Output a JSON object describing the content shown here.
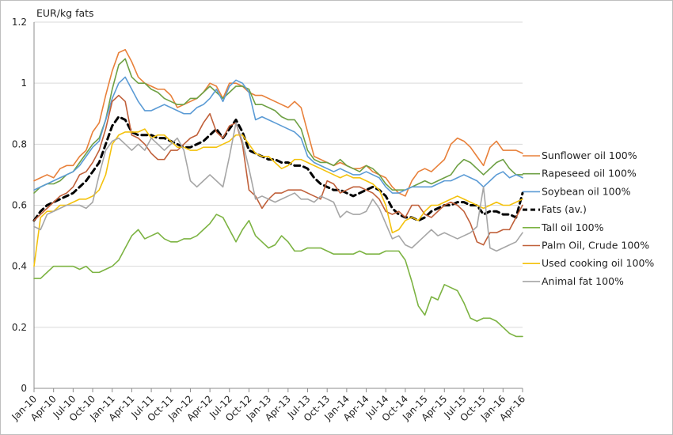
{
  "chart_data": {
    "type": "line",
    "ylabel": "EUR/kg fats",
    "ylim": [
      0,
      1.2
    ],
    "yticks": [
      "0",
      "0.2",
      "0.4",
      "0.6",
      "0.8",
      "1",
      "1.2"
    ],
    "x": [
      "Jan-10",
      "Feb-10",
      "Mar-10",
      "Apr-10",
      "May-10",
      "Jun-10",
      "Jul-10",
      "Aug-10",
      "Sep-10",
      "Oct-10",
      "Nov-10",
      "Dec-10",
      "Jan-11",
      "Feb-11",
      "Mar-11",
      "Apr-11",
      "May-11",
      "Jun-11",
      "Jul-11",
      "Aug-11",
      "Sep-11",
      "Oct-11",
      "Nov-11",
      "Dec-11",
      "Jan-12",
      "Feb-12",
      "Mar-12",
      "Apr-12",
      "May-12",
      "Jun-12",
      "Jul-12",
      "Aug-12",
      "Sep-12",
      "Oct-12",
      "Nov-12",
      "Dec-12",
      "Jan-13",
      "Feb-13",
      "Mar-13",
      "Apr-13",
      "May-13",
      "Jun-13",
      "Jul-13",
      "Aug-13",
      "Sep-13",
      "Oct-13",
      "Nov-13",
      "Dec-13",
      "Jan-14",
      "Feb-14",
      "Mar-14",
      "Apr-14",
      "May-14",
      "Jun-14",
      "Jul-14",
      "Aug-14",
      "Sep-14",
      "Oct-14",
      "Nov-14",
      "Dec-14",
      "Jan-15",
      "Feb-15",
      "Mar-15",
      "Apr-15",
      "May-15",
      "Jun-15",
      "Jul-15",
      "Aug-15",
      "Sep-15",
      "Oct-15",
      "Nov-15",
      "Dec-15",
      "Jan-16",
      "Feb-16",
      "Mar-16",
      "Apr-16"
    ],
    "xtick_labels": [
      "Jan-10",
      "Apr-10",
      "Jul-10",
      "Oct-10",
      "Jan-11",
      "Apr-11",
      "Jul-11",
      "Oct-11",
      "Jan-12",
      "Apr-12",
      "Jul-12",
      "Oct-12",
      "Jan-13",
      "Apr-13",
      "Jul-13",
      "Oct-13",
      "Jan-14",
      "Apr-14",
      "Jul-14",
      "Oct-14",
      "Jan-15",
      "Apr-15",
      "Jul-15",
      "Oct-15",
      "Jan-16",
      "Apr-16"
    ],
    "legend_position": "right",
    "grid": "horizontal",
    "series": [
      {
        "name": "Sunflower oil 100%",
        "color": "#E8803A",
        "dashed": false,
        "values": [
          0.68,
          0.69,
          0.7,
          0.69,
          0.72,
          0.73,
          0.73,
          0.76,
          0.78,
          0.84,
          0.87,
          0.96,
          1.04,
          1.1,
          1.11,
          1.07,
          1.02,
          1.0,
          0.99,
          0.98,
          0.98,
          0.96,
          0.92,
          0.93,
          0.94,
          0.95,
          0.97,
          1.0,
          0.99,
          0.95,
          1.0,
          1.0,
          0.99,
          0.97,
          0.96,
          0.96,
          0.95,
          0.94,
          0.93,
          0.92,
          0.94,
          0.92,
          0.84,
          0.76,
          0.75,
          0.74,
          0.73,
          0.74,
          0.73,
          0.72,
          0.72,
          0.73,
          0.71,
          0.7,
          0.69,
          0.66,
          0.64,
          0.63,
          0.68,
          0.71,
          0.72,
          0.71,
          0.73,
          0.75,
          0.8,
          0.82,
          0.81,
          0.79,
          0.76,
          0.73,
          0.79,
          0.81,
          0.78,
          0.78,
          0.78,
          0.77
        ]
      },
      {
        "name": "Rapeseed oil 100%",
        "color": "#6EA044",
        "dashed": false,
        "values": [
          0.64,
          0.66,
          0.67,
          0.67,
          0.68,
          0.7,
          0.71,
          0.74,
          0.77,
          0.8,
          0.82,
          0.88,
          0.98,
          1.06,
          1.08,
          1.02,
          1.0,
          1.0,
          0.98,
          0.97,
          0.95,
          0.94,
          0.93,
          0.93,
          0.95,
          0.95,
          0.97,
          0.99,
          0.97,
          0.95,
          0.97,
          0.99,
          0.99,
          0.98,
          0.93,
          0.93,
          0.92,
          0.91,
          0.89,
          0.88,
          0.88,
          0.85,
          0.78,
          0.75,
          0.74,
          0.74,
          0.73,
          0.75,
          0.73,
          0.72,
          0.71,
          0.73,
          0.72,
          0.7,
          0.67,
          0.65,
          0.65,
          0.65,
          0.66,
          0.67,
          0.68,
          0.67,
          0.68,
          0.69,
          0.7,
          0.73,
          0.75,
          0.74,
          0.72,
          0.7,
          0.72,
          0.74,
          0.75,
          0.72,
          0.7,
          0.7
        ]
      },
      {
        "name": "Soybean oil 100%",
        "color": "#5B9BD5",
        "dashed": false,
        "values": [
          0.65,
          0.66,
          0.67,
          0.68,
          0.69,
          0.7,
          0.71,
          0.73,
          0.76,
          0.79,
          0.81,
          0.88,
          0.95,
          1.0,
          1.02,
          0.98,
          0.94,
          0.91,
          0.91,
          0.92,
          0.93,
          0.92,
          0.91,
          0.9,
          0.9,
          0.92,
          0.93,
          0.95,
          0.98,
          0.94,
          0.99,
          1.01,
          1.0,
          0.97,
          0.88,
          0.89,
          0.88,
          0.87,
          0.86,
          0.85,
          0.84,
          0.82,
          0.76,
          0.74,
          0.73,
          0.72,
          0.71,
          0.72,
          0.71,
          0.7,
          0.7,
          0.71,
          0.7,
          0.69,
          0.66,
          0.64,
          0.64,
          0.65,
          0.66,
          0.66,
          0.66,
          0.66,
          0.67,
          0.68,
          0.68,
          0.69,
          0.7,
          0.69,
          0.68,
          0.66,
          0.68,
          0.7,
          0.71,
          0.69,
          0.7,
          0.69
        ]
      },
      {
        "name": "Fats (av.)",
        "color": "#000000",
        "dashed": true,
        "values": [
          0.55,
          0.58,
          0.6,
          0.61,
          0.62,
          0.63,
          0.64,
          0.66,
          0.68,
          0.71,
          0.74,
          0.8,
          0.86,
          0.89,
          0.88,
          0.84,
          0.83,
          0.83,
          0.83,
          0.82,
          0.82,
          0.81,
          0.8,
          0.79,
          0.79,
          0.8,
          0.81,
          0.83,
          0.85,
          0.82,
          0.85,
          0.88,
          0.84,
          0.78,
          0.77,
          0.76,
          0.75,
          0.75,
          0.74,
          0.74,
          0.73,
          0.73,
          0.72,
          0.69,
          0.67,
          0.66,
          0.65,
          0.65,
          0.64,
          0.63,
          0.64,
          0.65,
          0.66,
          0.65,
          0.63,
          0.59,
          0.57,
          0.56,
          0.56,
          0.55,
          0.56,
          0.58,
          0.59,
          0.6,
          0.6,
          0.61,
          0.61,
          0.6,
          0.6,
          0.57,
          0.58,
          0.58,
          0.57,
          0.57,
          0.56,
          0.64
        ]
      },
      {
        "name": "Tall oil 100%",
        "color": "#7CB342",
        "dashed": false,
        "values": [
          0.36,
          0.36,
          0.38,
          0.4,
          0.4,
          0.4,
          0.4,
          0.39,
          0.4,
          0.38,
          0.38,
          0.39,
          0.4,
          0.42,
          0.46,
          0.5,
          0.52,
          0.49,
          0.5,
          0.51,
          0.49,
          0.48,
          0.48,
          0.49,
          0.49,
          0.5,
          0.52,
          0.54,
          0.57,
          0.56,
          0.52,
          0.48,
          0.52,
          0.55,
          0.5,
          0.48,
          0.46,
          0.47,
          0.5,
          0.48,
          0.45,
          0.45,
          0.46,
          0.46,
          0.46,
          0.45,
          0.44,
          0.44,
          0.44,
          0.44,
          0.45,
          0.44,
          0.44,
          0.44,
          0.45,
          0.45,
          0.45,
          0.42,
          0.35,
          0.27,
          0.24,
          0.3,
          0.29,
          0.34,
          0.33,
          0.32,
          0.28,
          0.23,
          0.22,
          0.23,
          0.23,
          0.22,
          0.2,
          0.18,
          0.17,
          0.17
        ]
      },
      {
        "name": "Palm Oil, Crude 100%",
        "color": "#C0603A",
        "dashed": false,
        "values": [
          0.55,
          0.57,
          0.59,
          0.61,
          0.63,
          0.64,
          0.66,
          0.7,
          0.71,
          0.74,
          0.78,
          0.85,
          0.94,
          0.96,
          0.94,
          0.83,
          0.82,
          0.8,
          0.77,
          0.75,
          0.75,
          0.78,
          0.78,
          0.8,
          0.82,
          0.83,
          0.87,
          0.9,
          0.84,
          0.82,
          0.86,
          0.87,
          0.8,
          0.65,
          0.63,
          0.59,
          0.62,
          0.64,
          0.64,
          0.65,
          0.65,
          0.65,
          0.64,
          0.63,
          0.62,
          0.68,
          0.67,
          0.64,
          0.65,
          0.66,
          0.66,
          0.65,
          0.64,
          0.62,
          0.58,
          0.57,
          0.58,
          0.56,
          0.6,
          0.6,
          0.57,
          0.56,
          0.58,
          0.6,
          0.61,
          0.6,
          0.58,
          0.54,
          0.48,
          0.47,
          0.51,
          0.51,
          0.52,
          0.52,
          0.56,
          0.6
        ]
      },
      {
        "name": "Used cooking oil 100%",
        "color": "#F4C20D",
        "dashed": false,
        "values": [
          0.4,
          0.56,
          0.58,
          0.58,
          0.6,
          0.6,
          0.61,
          0.62,
          0.62,
          0.63,
          0.65,
          0.7,
          0.8,
          0.83,
          0.84,
          0.84,
          0.84,
          0.85,
          0.82,
          0.83,
          0.83,
          0.81,
          0.79,
          0.79,
          0.78,
          0.78,
          0.79,
          0.79,
          0.79,
          0.8,
          0.81,
          0.83,
          0.83,
          0.8,
          0.77,
          0.76,
          0.76,
          0.74,
          0.72,
          0.73,
          0.75,
          0.75,
          0.74,
          0.73,
          0.72,
          0.71,
          0.7,
          0.69,
          0.7,
          0.69,
          0.69,
          0.68,
          0.67,
          0.65,
          0.6,
          0.51,
          0.52,
          0.55,
          0.56,
          0.55,
          0.58,
          0.6,
          0.6,
          0.61,
          0.62,
          0.63,
          0.62,
          0.61,
          0.6,
          0.59,
          0.6,
          0.61,
          0.6,
          0.6,
          0.61,
          0.62
        ]
      },
      {
        "name": "Animal fat 100%",
        "color": "#A6A6A6",
        "dashed": false,
        "values": [
          0.53,
          0.52,
          0.57,
          0.58,
          0.59,
          0.6,
          0.6,
          0.6,
          0.59,
          0.61,
          0.7,
          0.78,
          0.81,
          0.82,
          0.8,
          0.78,
          0.8,
          0.78,
          0.82,
          0.8,
          0.78,
          0.8,
          0.82,
          0.78,
          0.68,
          0.66,
          0.68,
          0.7,
          0.68,
          0.66,
          0.76,
          0.87,
          0.81,
          0.72,
          0.62,
          0.63,
          0.62,
          0.61,
          0.62,
          0.63,
          0.64,
          0.62,
          0.62,
          0.61,
          0.63,
          0.62,
          0.61,
          0.56,
          0.58,
          0.57,
          0.57,
          0.58,
          0.62,
          0.59,
          0.54,
          0.49,
          0.5,
          0.47,
          0.46,
          0.48,
          0.5,
          0.52,
          0.5,
          0.51,
          0.5,
          0.49,
          0.5,
          0.51,
          0.53,
          0.66,
          0.46,
          0.45,
          0.46,
          0.47,
          0.48,
          0.51
        ]
      }
    ]
  }
}
